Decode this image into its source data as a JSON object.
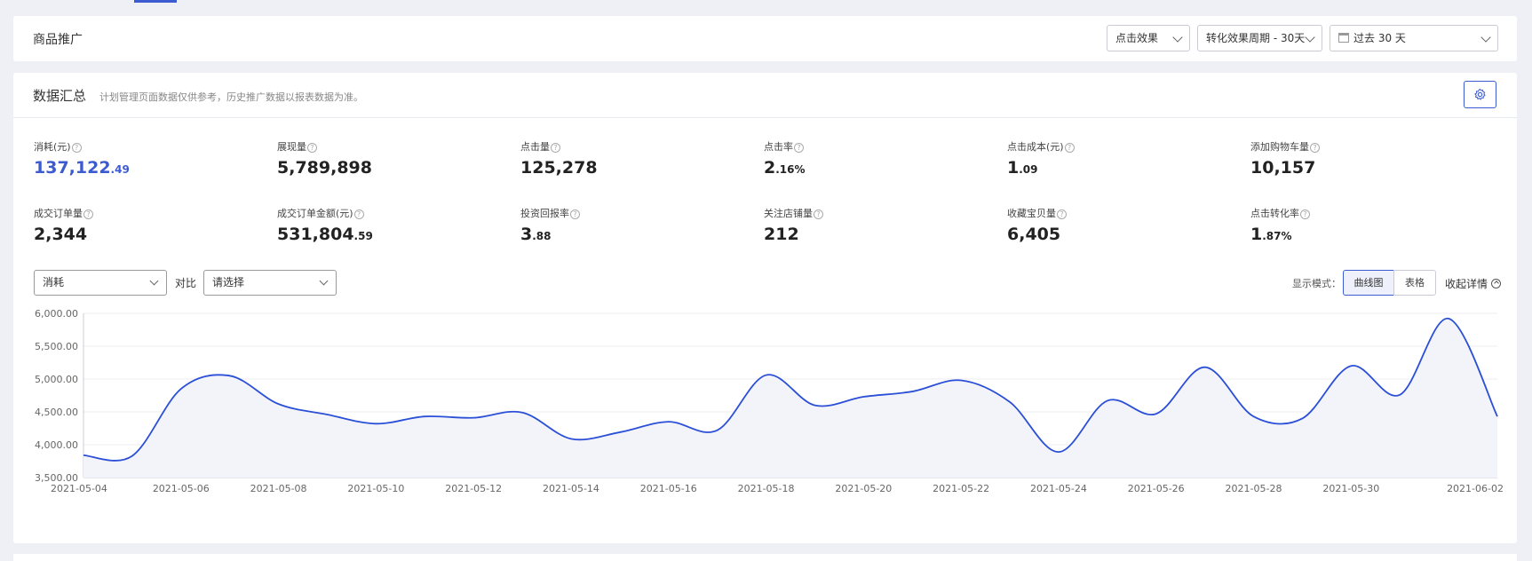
{
  "topbar": {
    "title": "商品推广",
    "filter_metric": "点击效果",
    "filter_period": "转化效果周期 - 30天",
    "filter_range": "过去 30 天"
  },
  "summary": {
    "title": "数据汇总",
    "note": "计划管理页面数据仅供参考，历史推广数据以报表数据为准。",
    "help_glyph": "?",
    "metrics": [
      {
        "label": "消耗(元)",
        "int": "137,122",
        "dec": ".49"
      },
      {
        "label": "展现量",
        "int": "5,789,898",
        "dec": ""
      },
      {
        "label": "点击量",
        "int": "125,278",
        "dec": ""
      },
      {
        "label": "点击率",
        "int": "2",
        "dec": ".16%"
      },
      {
        "label": "点击成本(元)",
        "int": "1",
        "dec": ".09"
      },
      {
        "label": "添加购物车量",
        "int": "10,157",
        "dec": ""
      },
      {
        "label": "成交订单量",
        "int": "2,344",
        "dec": ""
      },
      {
        "label": "成交订单金额(元)",
        "int": "531,804",
        "dec": ".59"
      },
      {
        "label": "投资回报率",
        "int": "3",
        "dec": ".88"
      },
      {
        "label": "关注店铺量",
        "int": "212",
        "dec": ""
      },
      {
        "label": "收藏宝贝量",
        "int": "6,405",
        "dec": ""
      },
      {
        "label": "点击转化率",
        "int": "1",
        "dec": ".87%"
      }
    ]
  },
  "controls": {
    "metric_select": "消耗",
    "compare_label": "对比",
    "compare_select": "请选择",
    "mode_label": "显示模式：",
    "mode_curve": "曲线图",
    "mode_table": "表格",
    "collapse": "收起详情"
  },
  "colors": {
    "accent": "#3d5bd1",
    "line": "#2b4fd6",
    "fill": "#f3f4fa"
  },
  "chart_data": {
    "type": "line",
    "series": [
      {
        "name": "消耗",
        "points": [
          [
            "2021-05-04",
            3840
          ],
          [
            "2021-05-05",
            3830
          ],
          [
            "2021-05-06",
            4850
          ],
          [
            "2021-05-07",
            5050
          ],
          [
            "2021-05-08",
            4620
          ],
          [
            "2021-05-09",
            4460
          ],
          [
            "2021-05-10",
            4320
          ],
          [
            "2021-05-11",
            4430
          ],
          [
            "2021-05-12",
            4410
          ],
          [
            "2021-05-13",
            4490
          ],
          [
            "2021-05-14",
            4090
          ],
          [
            "2021-05-15",
            4190
          ],
          [
            "2021-05-16",
            4350
          ],
          [
            "2021-05-17",
            4220
          ],
          [
            "2021-05-18",
            5060
          ],
          [
            "2021-05-19",
            4600
          ],
          [
            "2021-05-20",
            4730
          ],
          [
            "2021-05-21",
            4810
          ],
          [
            "2021-05-22",
            4980
          ],
          [
            "2021-05-23",
            4650
          ],
          [
            "2021-05-24",
            3890
          ],
          [
            "2021-05-25",
            4670
          ],
          [
            "2021-05-26",
            4470
          ],
          [
            "2021-05-27",
            5180
          ],
          [
            "2021-05-28",
            4430
          ],
          [
            "2021-05-29",
            4400
          ],
          [
            "2021-05-30",
            5200
          ],
          [
            "2021-05-31",
            4760
          ],
          [
            "2021-06-01",
            5920
          ],
          [
            "2021-06-02",
            4430
          ]
        ]
      }
    ],
    "xlabels": [
      "2021-05-04",
      "2021-05-06",
      "2021-05-08",
      "2021-05-10",
      "2021-05-12",
      "2021-05-14",
      "2021-05-16",
      "2021-05-18",
      "2021-05-20",
      "2021-05-22",
      "2021-05-24",
      "2021-05-26",
      "2021-05-28",
      "2021-05-30",
      "2021-06-02"
    ],
    "yticks": [
      "3,500.00",
      "4,000.00",
      "4,500.00",
      "5,000.00",
      "5,500.00",
      "6,000.00"
    ],
    "ylim": [
      3500,
      6000
    ],
    "grid": true
  }
}
